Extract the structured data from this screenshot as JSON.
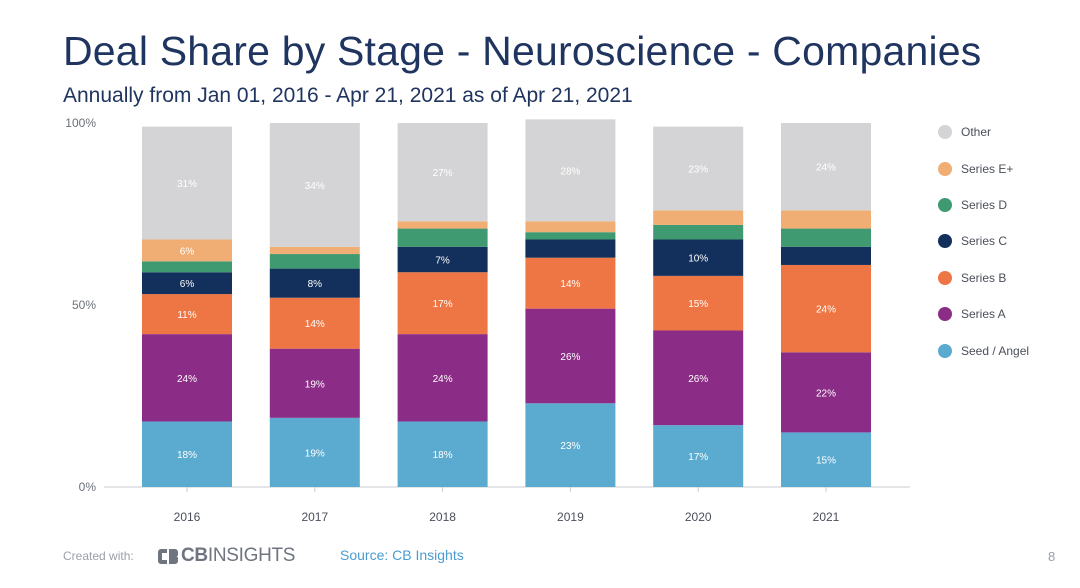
{
  "title": "Deal Share by Stage - Neuroscience - Companies",
  "subtitle": "Annually from Jan 01, 2016 - Apr 21, 2021 as of Apr 21, 2021",
  "footer": {
    "created_with": "Created with:",
    "logo_bold": "CB",
    "logo_light": "INSIGHTS",
    "source": "Source: CB Insights",
    "page_number": "8"
  },
  "chart_data": {
    "type": "bar",
    "stacked": true,
    "categories": [
      "2016",
      "2017",
      "2018",
      "2019",
      "2020",
      "2021"
    ],
    "ylim": [
      0,
      100
    ],
    "y_ticks": [
      "0%",
      "50%",
      "100%"
    ],
    "legend_position": "right",
    "series": [
      {
        "name": "Seed / Angel",
        "color": "#5baacf",
        "values": [
          18,
          19,
          18,
          23,
          17,
          15
        ],
        "labels": [
          "18%",
          "19%",
          "18%",
          "23%",
          "17%",
          "15%"
        ]
      },
      {
        "name": "Series A",
        "color": "#8b2d86",
        "values": [
          24,
          19,
          24,
          26,
          26,
          22
        ],
        "labels": [
          "24%",
          "19%",
          "24%",
          "26%",
          "26%",
          "22%"
        ]
      },
      {
        "name": "Series B",
        "color": "#ee7644",
        "values": [
          11,
          14,
          17,
          14,
          15,
          24
        ],
        "labels": [
          "11%",
          "14%",
          "17%",
          "14%",
          "15%",
          "24%"
        ]
      },
      {
        "name": "Series C",
        "color": "#13305c",
        "values": [
          6,
          8,
          7,
          5,
          10,
          5
        ],
        "labels": [
          "6%",
          "8%",
          "7%",
          "",
          "10%",
          ""
        ]
      },
      {
        "name": "Series D",
        "color": "#3f9a72",
        "values": [
          3,
          4,
          5,
          2,
          4,
          5
        ],
        "labels": [
          "",
          "",
          "",
          "",
          "",
          ""
        ]
      },
      {
        "name": "Series E+",
        "color": "#f0ae74",
        "values": [
          6,
          2,
          2,
          3,
          4,
          5
        ],
        "labels": [
          "6%",
          "",
          "",
          "",
          "",
          ""
        ]
      },
      {
        "name": "Other",
        "color": "#d4d4d6",
        "values": [
          31,
          34,
          27,
          28,
          23,
          24
        ],
        "labels": [
          "31%",
          "34%",
          "27%",
          "28%",
          "23%",
          "24%"
        ]
      }
    ]
  }
}
